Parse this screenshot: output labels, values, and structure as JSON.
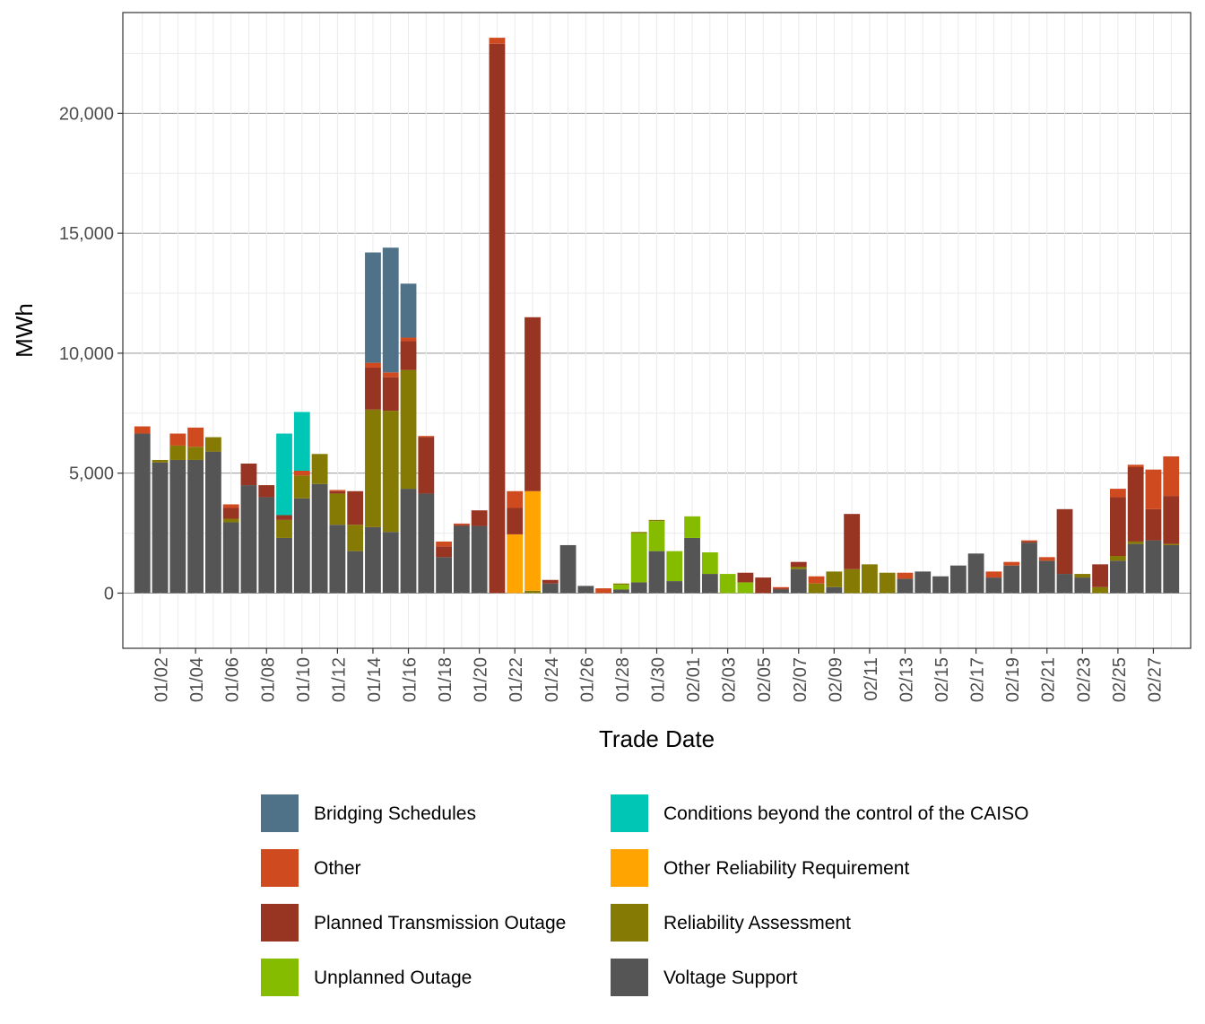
{
  "chart_data": {
    "type": "bar",
    "stacked": true,
    "xlabel": "Trade Date",
    "ylabel": "MWh",
    "ylim": [
      -2300,
      24200
    ],
    "yticks": [
      0,
      5000,
      10000,
      15000,
      20000
    ],
    "ytick_labels": [
      "0",
      "5,000",
      "10,000",
      "15,000",
      "20,000"
    ],
    "grid": true,
    "legend_position": "bottom",
    "categories": [
      "01/01",
      "01/02",
      "01/03",
      "01/04",
      "01/05",
      "01/06",
      "01/07",
      "01/08",
      "01/09",
      "01/10",
      "01/11",
      "01/12",
      "01/13",
      "01/14",
      "01/15",
      "01/16",
      "01/17",
      "01/18",
      "01/19",
      "01/20",
      "01/21",
      "01/22",
      "01/23",
      "01/24",
      "01/25",
      "01/26",
      "01/27",
      "01/28",
      "01/29",
      "01/30",
      "01/31",
      "02/01",
      "02/02",
      "02/03",
      "02/04",
      "02/05",
      "02/06",
      "02/07",
      "02/08",
      "02/09",
      "02/10",
      "02/11",
      "02/12",
      "02/13",
      "02/14",
      "02/15",
      "02/16",
      "02/17",
      "02/18",
      "02/19",
      "02/20",
      "02/21",
      "02/22",
      "02/23",
      "02/24",
      "02/25",
      "02/26",
      "02/27",
      "02/28"
    ],
    "xtick_labels": [
      "01/02",
      "01/04",
      "01/06",
      "01/08",
      "01/10",
      "01/12",
      "01/14",
      "01/16",
      "01/18",
      "01/20",
      "01/22",
      "01/24",
      "01/26",
      "01/28",
      "01/30",
      "02/01",
      "02/03",
      "02/05",
      "02/07",
      "02/09",
      "02/11",
      "02/13",
      "02/15",
      "02/17",
      "02/19",
      "02/21",
      "02/23",
      "02/25",
      "02/27"
    ],
    "series": [
      {
        "name": "Voltage Support",
        "color": "#555555",
        "values": [
          6650,
          5450,
          5550,
          5550,
          5900,
          2950,
          4500,
          4000,
          2300,
          3950,
          4550,
          2850,
          1750,
          2750,
          2550,
          4350,
          4150,
          1500,
          2800,
          2800,
          0,
          0,
          0,
          400,
          2000,
          300,
          0,
          150,
          450,
          1750,
          500,
          2300,
          800,
          0,
          0,
          0,
          150,
          1000,
          0,
          250,
          0,
          0,
          0,
          600,
          900,
          700,
          1150,
          1650,
          650,
          1150,
          2100,
          1350,
          800,
          650,
          0,
          1350,
          2050,
          2200,
          2000
        ]
      },
      {
        "name": "Unplanned Outage",
        "color": "#86BC00",
        "values": [
          0,
          0,
          0,
          0,
          0,
          0,
          0,
          0,
          0,
          0,
          0,
          0,
          0,
          0,
          0,
          0,
          0,
          0,
          0,
          0,
          0,
          0,
          0,
          0,
          0,
          0,
          0,
          200,
          2050,
          1250,
          1250,
          900,
          900,
          800,
          450,
          0,
          0,
          0,
          0,
          0,
          0,
          0,
          0,
          0,
          0,
          0,
          0,
          0,
          0,
          0,
          0,
          0,
          0,
          0,
          0,
          0,
          0,
          0,
          0
        ]
      },
      {
        "name": "Reliability Assessment",
        "color": "#857B04",
        "values": [
          0,
          100,
          600,
          550,
          600,
          150,
          0,
          0,
          750,
          950,
          1250,
          1300,
          1100,
          4900,
          5050,
          4950,
          0,
          0,
          0,
          0,
          0,
          0,
          100,
          0,
          0,
          0,
          0,
          50,
          50,
          50,
          0,
          0,
          0,
          0,
          0,
          0,
          0,
          100,
          400,
          650,
          1000,
          1200,
          850,
          0,
          0,
          0,
          0,
          0,
          0,
          0,
          0,
          0,
          0,
          150,
          250,
          200,
          100,
          0,
          50
        ]
      },
      {
        "name": "Other Reliability Requirement",
        "color": "#FFA400",
        "values": [
          0,
          0,
          0,
          0,
          0,
          0,
          0,
          0,
          0,
          0,
          0,
          0,
          0,
          0,
          0,
          0,
          0,
          0,
          0,
          0,
          0,
          2450,
          4150,
          0,
          0,
          0,
          0,
          0,
          0,
          0,
          0,
          0,
          0,
          0,
          0,
          0,
          0,
          0,
          0,
          0,
          0,
          0,
          0,
          0,
          0,
          0,
          0,
          0,
          0,
          0,
          0,
          0,
          0,
          0,
          0,
          0,
          0,
          0,
          0
        ]
      },
      {
        "name": "Planned Transmission Outage",
        "color": "#973422",
        "values": [
          0,
          0,
          0,
          0,
          0,
          450,
          900,
          500,
          200,
          0,
          0,
          100,
          1400,
          1750,
          1400,
          1200,
          2350,
          450,
          50,
          650,
          22900,
          1100,
          7250,
          150,
          0,
          0,
          0,
          0,
          0,
          0,
          0,
          0,
          0,
          0,
          400,
          650,
          50,
          200,
          0,
          0,
          2300,
          0,
          0,
          0,
          0,
          0,
          0,
          0,
          0,
          0,
          50,
          0,
          2700,
          0,
          950,
          2450,
          3100,
          1300,
          2000
        ]
      },
      {
        "name": "Other",
        "color": "#D04A20",
        "values": [
          300,
          0,
          500,
          800,
          0,
          150,
          0,
          0,
          0,
          200,
          0,
          50,
          0,
          200,
          200,
          150,
          50,
          200,
          50,
          0,
          250,
          700,
          0,
          0,
          0,
          0,
          200,
          0,
          0,
          0,
          0,
          0,
          0,
          0,
          0,
          0,
          50,
          0,
          300,
          0,
          0,
          0,
          0,
          250,
          0,
          0,
          0,
          0,
          250,
          150,
          50,
          150,
          0,
          0,
          0,
          350,
          100,
          1650,
          1650
        ]
      },
      {
        "name": "Conditions beyond the control of the CAISO",
        "color": "#00C6B5",
        "values": [
          0,
          0,
          0,
          0,
          0,
          0,
          0,
          0,
          3400,
          2450,
          0,
          0,
          0,
          0,
          0,
          0,
          0,
          0,
          0,
          0,
          0,
          0,
          0,
          0,
          0,
          0,
          0,
          0,
          0,
          0,
          0,
          0,
          0,
          0,
          0,
          0,
          0,
          0,
          0,
          0,
          0,
          0,
          0,
          0,
          0,
          0,
          0,
          0,
          0,
          0,
          0,
          0,
          0,
          0,
          0,
          0,
          0,
          0,
          0
        ]
      },
      {
        "name": "Bridging Schedules",
        "color": "#4F7289",
        "values": [
          0,
          0,
          0,
          0,
          0,
          0,
          0,
          0,
          0,
          0,
          0,
          0,
          0,
          4600,
          5200,
          2250,
          0,
          0,
          0,
          0,
          0,
          0,
          0,
          0,
          0,
          0,
          0,
          0,
          0,
          0,
          0,
          0,
          0,
          0,
          0,
          0,
          0,
          0,
          0,
          0,
          0,
          0,
          0,
          0,
          0,
          0,
          0,
          0,
          0,
          0,
          0,
          0,
          0,
          0,
          0,
          0,
          0,
          0,
          0
        ]
      }
    ],
    "legend": [
      {
        "name": "Bridging Schedules",
        "color": "#4F7289"
      },
      {
        "name": "Conditions beyond the control of the CAISO",
        "color": "#00C6B5"
      },
      {
        "name": "Other",
        "color": "#D04A20"
      },
      {
        "name": "Other Reliability Requirement",
        "color": "#FFA400"
      },
      {
        "name": "Planned Transmission Outage",
        "color": "#973422"
      },
      {
        "name": "Reliability Assessment",
        "color": "#857B04"
      },
      {
        "name": "Unplanned Outage",
        "color": "#86BC00"
      },
      {
        "name": "Voltage Support",
        "color": "#555555"
      }
    ]
  }
}
